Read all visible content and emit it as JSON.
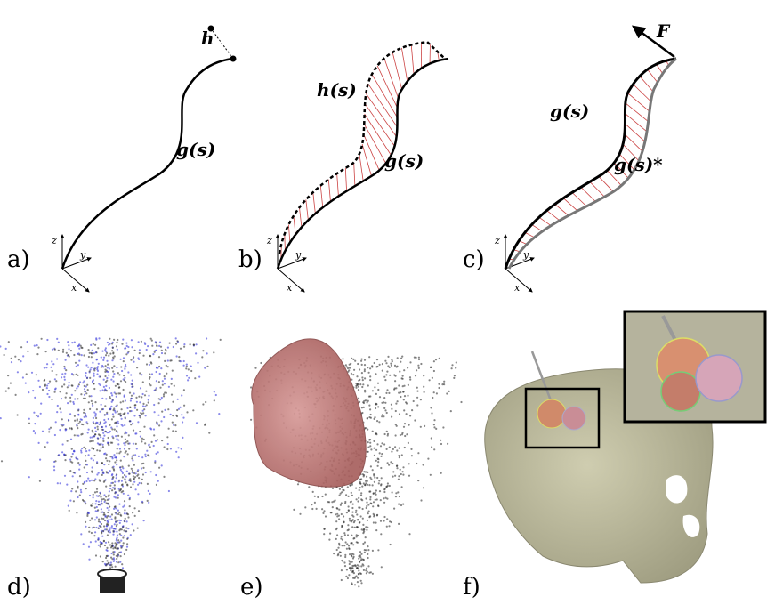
{
  "panels": [
    {
      "label": "a)",
      "annotations": [
        "h",
        "g(s)"
      ],
      "axes": [
        "x",
        "y",
        "z"
      ]
    },
    {
      "label": "b)",
      "annotations": [
        "h(s)",
        "g(s)"
      ],
      "axes": [
        "x",
        "y",
        "z"
      ]
    },
    {
      "label": "c)",
      "annotations": [
        "F",
        "g(s)",
        "g(s)*"
      ],
      "axes": [
        "x",
        "y",
        "z"
      ]
    },
    {
      "label": "d)"
    },
    {
      "label": "e)"
    },
    {
      "label": "f)"
    }
  ]
}
